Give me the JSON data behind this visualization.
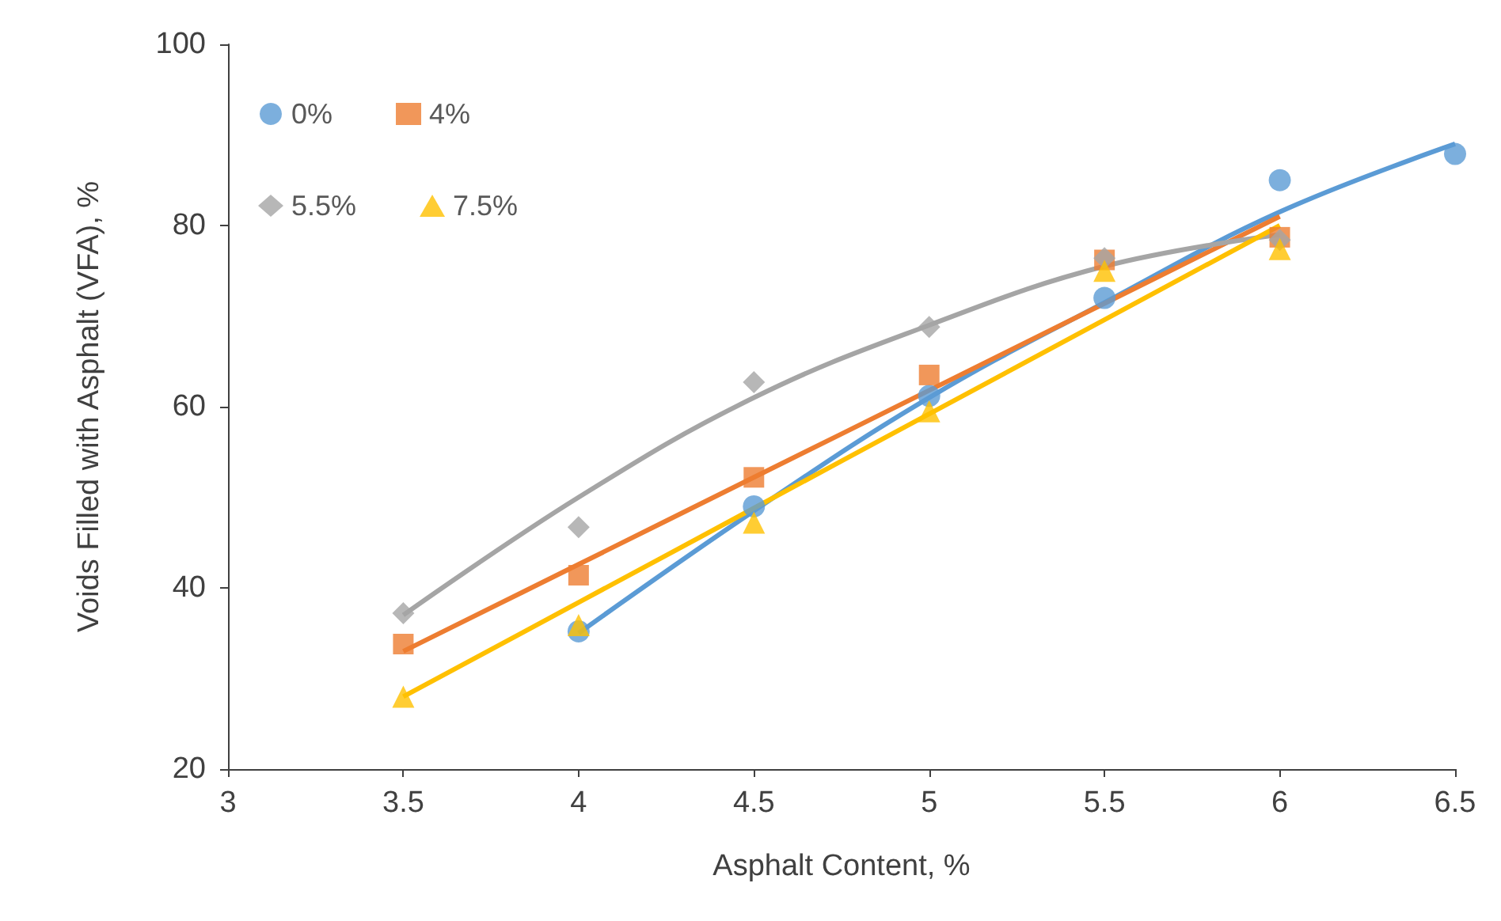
{
  "chart_data": {
    "type": "scatter",
    "xlabel": "Asphalt Content, %",
    "ylabel": "Voids Filled with Asphalt (VFA), %",
    "xlim": [
      3,
      6.5
    ],
    "xticks": [
      3,
      3.5,
      4,
      4.5,
      5,
      5.5,
      6,
      6.5
    ],
    "ylim": [
      20,
      100
    ],
    "yticks": [
      20,
      40,
      60,
      80,
      100
    ],
    "grid": false,
    "legend": "top left",
    "series": [
      {
        "name": "0%",
        "marker": "circle",
        "color": "#5b9bd5",
        "x": [
          4,
          4.5,
          5,
          5.5,
          6,
          6.5
        ],
        "values": [
          35.2,
          49,
          61.2,
          72,
          85,
          87.9
        ]
      },
      {
        "name": "4%",
        "marker": "square",
        "color": "#ed7d31",
        "x": [
          3.5,
          4,
          4.5,
          5,
          5.5,
          6
        ],
        "values": [
          33.8,
          41.4,
          52.2,
          63.5,
          76.2,
          78.7
        ]
      },
      {
        "name": "5.5%",
        "marker": "diamond",
        "color": "#a5a5a5",
        "x": [
          3.5,
          4,
          4.5,
          5,
          5.5,
          6
        ],
        "values": [
          37.2,
          46.7,
          62.7,
          68.8,
          76.4,
          78.4
        ]
      },
      {
        "name": "7.5%",
        "marker": "triangle",
        "color": "#ffc000",
        "x": [
          3.5,
          4,
          4.5,
          5,
          5.5,
          6
        ],
        "values": [
          28,
          35.9,
          47.2,
          59.5,
          75,
          77.4
        ]
      },
      {
        "type": "line",
        "marker": "none",
        "color": "#5b9bd5",
        "x": [
          4,
          4.5,
          5,
          5.5,
          6,
          6.5
        ],
        "values": [
          35,
          48.5,
          61,
          71.5,
          81.5,
          89
        ]
      },
      {
        "type": "line",
        "marker": "none",
        "color": "#ed7d31",
        "x": [
          3.5,
          4,
          4.5,
          5,
          5.5,
          6
        ],
        "values": [
          33,
          42.6,
          52.2,
          61.8,
          71.4,
          81
        ]
      },
      {
        "type": "line",
        "marker": "none",
        "color": "#a5a5a5",
        "x": [
          3.5,
          4,
          4.5,
          5,
          5.5,
          6
        ],
        "values": [
          37,
          50,
          61,
          69,
          75.5,
          79
        ]
      },
      {
        "type": "line",
        "marker": "none",
        "color": "#ffc000",
        "x": [
          3.5,
          4,
          4.5,
          5,
          5.5,
          6
        ],
        "values": [
          28,
          38.4,
          48.8,
          59.2,
          69.6,
          80
        ]
      }
    ]
  }
}
